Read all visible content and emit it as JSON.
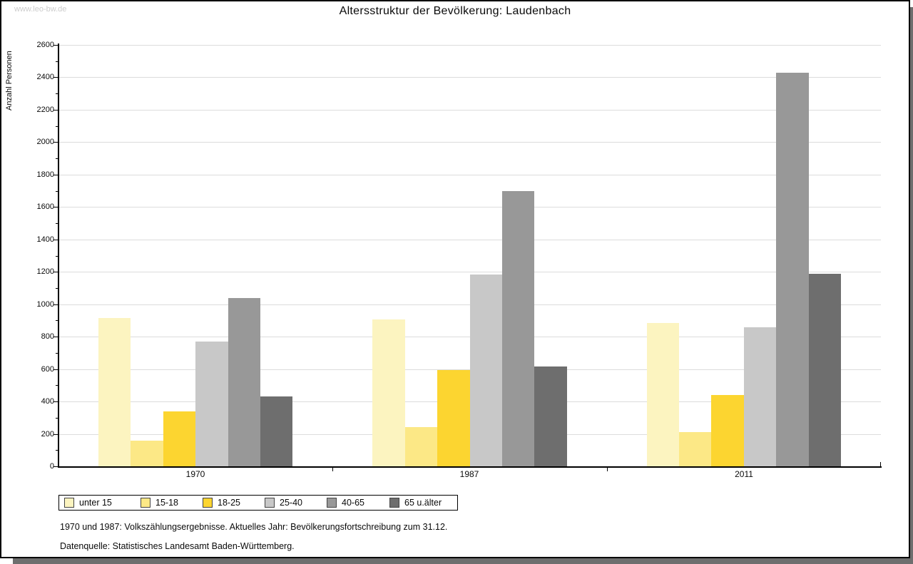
{
  "page": {
    "watermark": "www.leo-bw.de",
    "footnotes": [
      "1970 und 1987: Volkszählungsergebnisse. Aktuelles Jahr: Bevölkerungsfortschreibung zum 31.12.",
      "Datenquelle: Statistisches Landesamt Baden-Württemberg."
    ]
  },
  "chart_data": {
    "type": "bar",
    "title": "Altersstruktur der Bevölkerung: Laudenbach",
    "xlabel": "",
    "ylabel": "Anzahl Personen",
    "categories": [
      "1970",
      "1987",
      "2011"
    ],
    "series": [
      {
        "name": "unter 15",
        "color": "#FCF4C0",
        "values": [
          915,
          905,
          885
        ]
      },
      {
        "name": "15-18",
        "color": "#FCE886",
        "values": [
          160,
          240,
          210
        ]
      },
      {
        "name": "18-25",
        "color": "#FCD530",
        "values": [
          340,
          595,
          440
        ]
      },
      {
        "name": "25-40",
        "color": "#C8C8C8",
        "values": [
          770,
          1185,
          860
        ]
      },
      {
        "name": "40-65",
        "color": "#989898",
        "values": [
          1040,
          1700,
          2430
        ]
      },
      {
        "name": "65 u.älter",
        "color": "#6E6E6E",
        "values": [
          430,
          615,
          1190
        ]
      }
    ],
    "ylim": [
      0,
      2600
    ],
    "ytick_step": 200,
    "yminor_step": 100,
    "grid": true,
    "legend_position": "bottom",
    "colors": {
      "grid": "#DCDCDC",
      "axis": "#000000",
      "text": "#0A0A0A",
      "watermark": "#CCCCCC",
      "page_shadow": "#6E6E6E"
    }
  }
}
